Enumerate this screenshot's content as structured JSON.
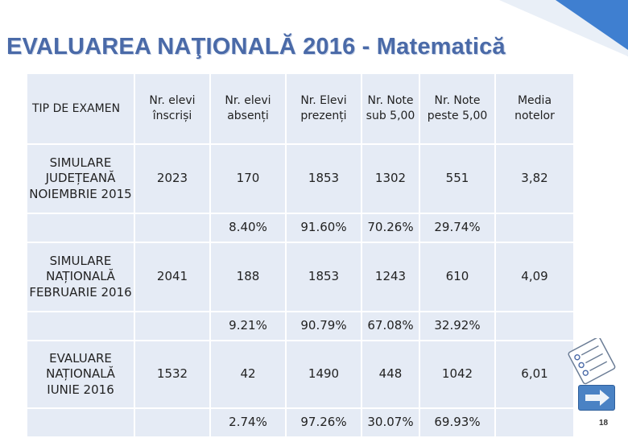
{
  "title": "EVALUAREA NAŢIONALĂ 2016 - Matematică",
  "table": {
    "headers": [
      "TIP DE EXAMEN",
      "Nr. elevi înscriși",
      "Nr. elevi absenți",
      "Nr. Elevi prezenți",
      "Nr. Note sub 5,00",
      "Nr. Note peste 5,00",
      "Media notelor"
    ],
    "rows": [
      {
        "exam": "SIMULARE JUDEȚEANĂ NOIEMBRIE 2015",
        "inscrisi": "2023",
        "absenti": "170",
        "prezenti": "1853",
        "sub5": "1302",
        "peste5": "551",
        "media": "3,82",
        "pct_absenti": "8.40%",
        "pct_prezenti": "91.60%",
        "pct_sub5": "70.26%",
        "pct_peste5": "29.74%"
      },
      {
        "exam": "SIMULARE NAȚIONALĂ FEBRUARIE 2016",
        "inscrisi": "2041",
        "absenti": "188",
        "prezenti": "1853",
        "sub5": "1243",
        "peste5": "610",
        "media": "4,09",
        "pct_absenti": "9.21%",
        "pct_prezenti": "90.79%",
        "pct_sub5": "67.08%",
        "pct_peste5": "32.92%"
      },
      {
        "exam": "EVALUARE NAȚIONALĂ IUNIE 2016",
        "inscrisi": "1532",
        "absenti": "42",
        "prezenti": "1490",
        "sub5": "448",
        "peste5": "1042",
        "media": "6,01",
        "pct_absenti": "2.74%",
        "pct_prezenti": "97.26%",
        "pct_sub5": "30.07%",
        "pct_peste5": "69.93%"
      }
    ]
  },
  "page_number": "18",
  "colors": {
    "title": "#4a6aa8",
    "cell_bg": "#e5ebf5",
    "highlight": "#d01010",
    "accent": "#3f7fd0"
  },
  "icons": {
    "next": "arrow-right-icon",
    "checklist": "checklist-icon"
  }
}
